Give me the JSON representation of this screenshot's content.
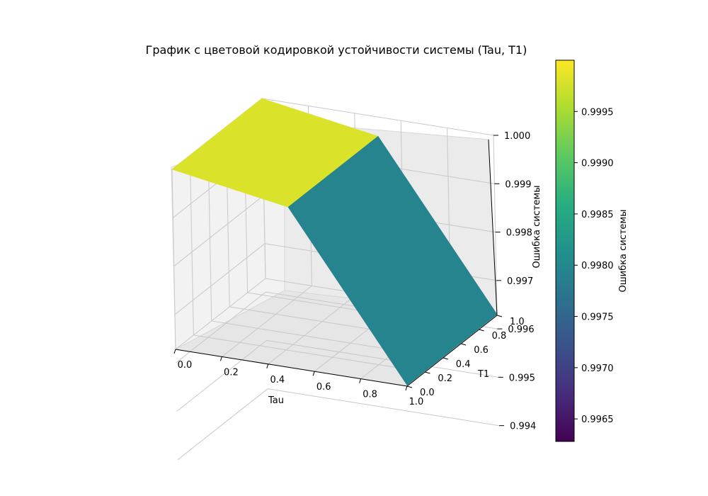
{
  "chart_data": {
    "type": "surface3d",
    "title": "График с цветовой кодировкой устойчивости системы (Tau, T1)",
    "xlabel": "Tau",
    "ylabel": "T1",
    "zlabel": "Ошибка системы",
    "colorbar_label": "Ошибка системы",
    "colormap": "viridis",
    "x_values": [
      0.0,
      0.5,
      1.0
    ],
    "y_values": [
      0.0,
      0.5,
      1.0
    ],
    "z_grid": [
      [
        1.0,
        1.0,
        1.0
      ],
      [
        0.9996,
        0.9996,
        0.9996
      ],
      [
        0.9963,
        0.9963,
        0.9963
      ]
    ],
    "xlim": [
      0.0,
      1.0
    ],
    "ylim": [
      0.0,
      1.0
    ],
    "zlim": [
      0.9963,
      1.0
    ],
    "x_ticks": [
      "0.0",
      "0.2",
      "0.4",
      "0.6",
      "0.8",
      "1.0"
    ],
    "y_ticks": [
      "0.0",
      "0.2",
      "0.4",
      "0.6",
      "0.8",
      "1.0"
    ],
    "z_ticks": [
      "0.994",
      "0.995",
      "0.996",
      "0.997",
      "0.998",
      "0.999",
      "1.000"
    ],
    "colorbar_ticks": [
      "0.9965",
      "0.9970",
      "0.9975",
      "0.9980",
      "0.9985",
      "0.9990",
      "0.9995"
    ],
    "colorbar_range": [
      0.99628,
      1.0
    ],
    "grid": true
  }
}
